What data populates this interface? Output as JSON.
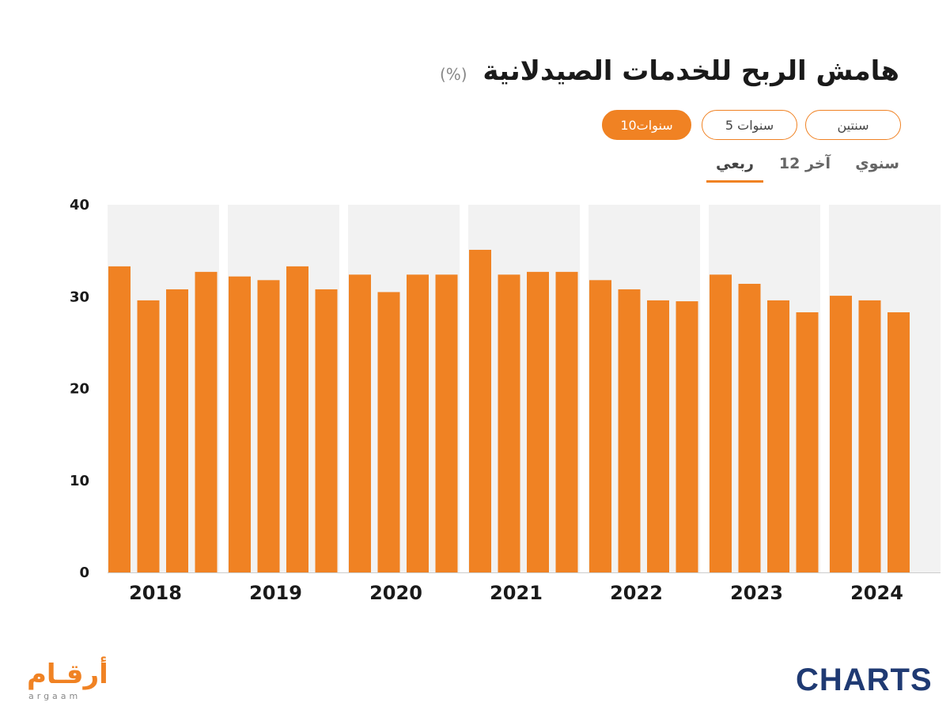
{
  "header": {
    "title": "هامش الربح للخدمات الصيدلانية",
    "unit": "(%)"
  },
  "range_buttons": [
    {
      "label": "سنتين",
      "active": false
    },
    {
      "label": "5 سنوات",
      "active": false
    },
    {
      "label": "10سنوات",
      "active": true
    }
  ],
  "period_tabs": [
    {
      "label": "سنوي",
      "active": false
    },
    {
      "label": "آخر 12",
      "active": false
    },
    {
      "label": "ربعي",
      "active": true
    }
  ],
  "colors": {
    "bar": "#f08223",
    "panel_background": "#f2f2f2",
    "accent": "#f08223",
    "brand_charts": "#1f3a73"
  },
  "chart_data": {
    "type": "bar",
    "title": "هامش الربح للخدمات الصيدلانية",
    "ylabel": "(%)",
    "ylim": [
      0,
      40
    ],
    "yticks": [
      0,
      10,
      20,
      30,
      40
    ],
    "grid": false,
    "groups": [
      {
        "label": "2018",
        "values": [
          33.3,
          29.6,
          30.8,
          32.7
        ]
      },
      {
        "label": "2019",
        "values": [
          32.2,
          31.8,
          33.3,
          30.8
        ]
      },
      {
        "label": "2020",
        "values": [
          32.4,
          30.5,
          32.4,
          32.4
        ]
      },
      {
        "label": "2021",
        "values": [
          35.1,
          32.4,
          32.7,
          32.7
        ]
      },
      {
        "label": "2022",
        "values": [
          31.8,
          30.8,
          29.6,
          29.5
        ]
      },
      {
        "label": "2023",
        "values": [
          32.4,
          31.4,
          29.6,
          28.3
        ]
      },
      {
        "label": "2024",
        "values": [
          30.1,
          29.6,
          28.3
        ]
      }
    ]
  },
  "logos": {
    "argaam": "أرقـام",
    "argaam_sub": "argaam",
    "charts": "CHARTS"
  }
}
